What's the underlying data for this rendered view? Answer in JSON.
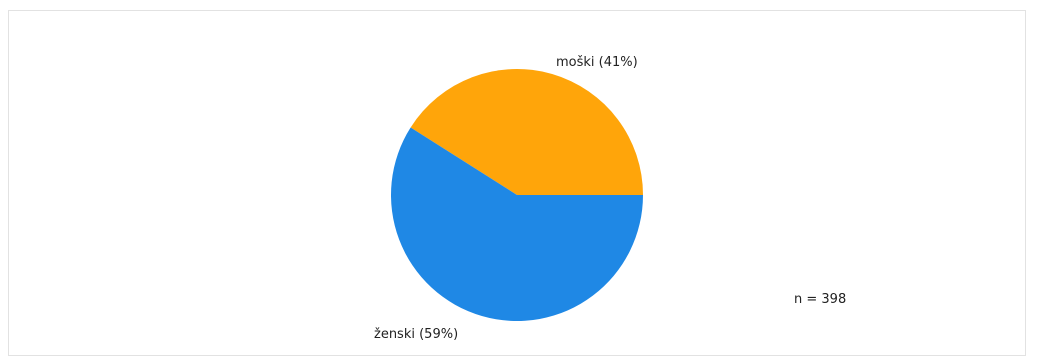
{
  "chart_data": {
    "type": "pie",
    "slices": [
      {
        "label": "moški (41%)",
        "value": 41,
        "color": "#FFA50A"
      },
      {
        "label": "ženski (59%)",
        "value": 59,
        "color": "#1F88E5"
      }
    ],
    "annotation": "n = 398"
  }
}
